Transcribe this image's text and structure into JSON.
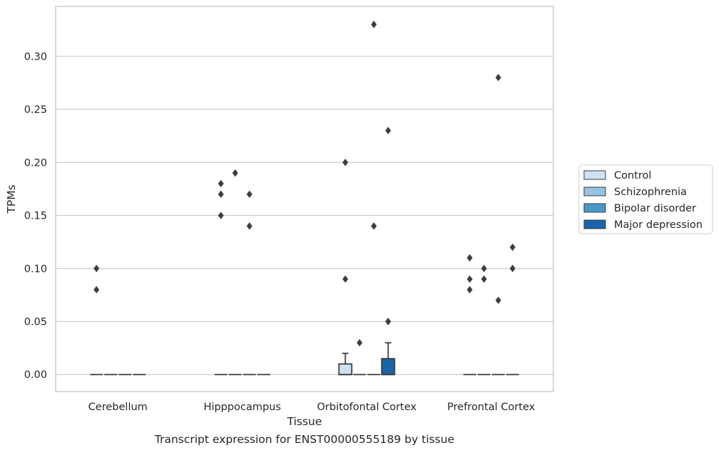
{
  "caption": "Transcript expression for ENST00000555189 by tissue",
  "chart_data": {
    "type": "box",
    "title": "",
    "xlabel": "Tissue",
    "ylabel": "TPMs",
    "ylim": [
      -0.016,
      0.347
    ],
    "yticks": [
      "0.00",
      "0.05",
      "0.10",
      "0.15",
      "0.20",
      "0.25",
      "0.30"
    ],
    "categories": [
      "Cerebellum",
      "Hipppocampus",
      "Orbitofontal Cortex",
      "Prefrontal Cortex"
    ],
    "grid": true,
    "legend_position": "right",
    "series": [
      {
        "name": "Control",
        "color": "#d0e1f2"
      },
      {
        "name": "Schizophrenia",
        "color": "#94c4df"
      },
      {
        "name": "Bipolar disorder",
        "color": "#4a98c9"
      },
      {
        "name": "Major depression",
        "color": "#1764ab"
      }
    ],
    "boxes": [
      {
        "category": 0,
        "series": 0,
        "q1": 0,
        "median": 0,
        "q3": 0,
        "whisker_low": 0,
        "whisker_high": 0,
        "outliers": [
          0.08,
          0.1
        ]
      },
      {
        "category": 0,
        "series": 1,
        "q1": 0,
        "median": 0,
        "q3": 0,
        "whisker_low": 0,
        "whisker_high": 0,
        "outliers": []
      },
      {
        "category": 0,
        "series": 2,
        "q1": 0,
        "median": 0,
        "q3": 0,
        "whisker_low": 0,
        "whisker_high": 0,
        "outliers": []
      },
      {
        "category": 0,
        "series": 3,
        "q1": 0,
        "median": 0,
        "q3": 0,
        "whisker_low": 0,
        "whisker_high": 0,
        "outliers": []
      },
      {
        "category": 1,
        "series": 0,
        "q1": 0,
        "median": 0,
        "q3": 0,
        "whisker_low": 0,
        "whisker_high": 0,
        "outliers": [
          0.15,
          0.17,
          0.18
        ]
      },
      {
        "category": 1,
        "series": 1,
        "q1": 0,
        "median": 0,
        "q3": 0,
        "whisker_low": 0,
        "whisker_high": 0,
        "outliers": [
          0.19
        ]
      },
      {
        "category": 1,
        "series": 2,
        "q1": 0,
        "median": 0,
        "q3": 0,
        "whisker_low": 0,
        "whisker_high": 0,
        "outliers": [
          0.14,
          0.17
        ]
      },
      {
        "category": 1,
        "series": 3,
        "q1": 0,
        "median": 0,
        "q3": 0,
        "whisker_low": 0,
        "whisker_high": 0,
        "outliers": []
      },
      {
        "category": 2,
        "series": 0,
        "q1": 0,
        "median": 0,
        "q3": 0.01,
        "whisker_low": 0,
        "whisker_high": 0.02,
        "outliers": [
          0.09,
          0.2
        ]
      },
      {
        "category": 2,
        "series": 1,
        "q1": 0,
        "median": 0,
        "q3": 0,
        "whisker_low": 0,
        "whisker_high": 0,
        "outliers": [
          0.03
        ]
      },
      {
        "category": 2,
        "series": 2,
        "q1": 0,
        "median": 0,
        "q3": 0,
        "whisker_low": 0,
        "whisker_high": 0,
        "outliers": [
          0.14,
          0.33
        ]
      },
      {
        "category": 2,
        "series": 3,
        "q1": 0,
        "median": 0,
        "q3": 0.015,
        "whisker_low": 0,
        "whisker_high": 0.03,
        "outliers": [
          0.05,
          0.05,
          0.23
        ]
      },
      {
        "category": 3,
        "series": 0,
        "q1": 0,
        "median": 0,
        "q3": 0,
        "whisker_low": 0,
        "whisker_high": 0,
        "outliers": [
          0.08,
          0.09,
          0.11
        ]
      },
      {
        "category": 3,
        "series": 1,
        "q1": 0,
        "median": 0,
        "q3": 0,
        "whisker_low": 0,
        "whisker_high": 0,
        "outliers": [
          0.09,
          0.1
        ]
      },
      {
        "category": 3,
        "series": 2,
        "q1": 0,
        "median": 0,
        "q3": 0,
        "whisker_low": 0,
        "whisker_high": 0,
        "outliers": [
          0.07,
          0.28
        ]
      },
      {
        "category": 3,
        "series": 3,
        "q1": 0,
        "median": 0,
        "q3": 0,
        "whisker_low": 0,
        "whisker_high": 0,
        "outliers": [
          0.1,
          0.12
        ]
      }
    ]
  }
}
